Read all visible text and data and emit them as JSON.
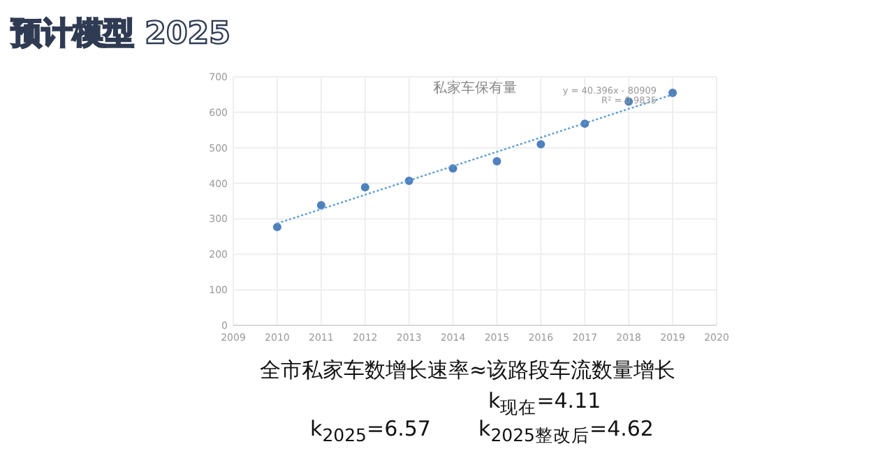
{
  "chart_data": {
    "type": "scatter",
    "title": "预计模型 2025",
    "subtitle": "私家车保有量",
    "x": [
      2010,
      2011,
      2012,
      2013,
      2014,
      2015,
      2016,
      2017,
      2018,
      2019
    ],
    "series": [
      {
        "type": "scatter",
        "color": "#4f81bd",
        "marker": "circle",
        "values": [
          277,
          338,
          389,
          407,
          442,
          462,
          510,
          568,
          630,
          655
        ]
      },
      {
        "type": "line",
        "x": [
          2010,
          2019
        ],
        "color": "#5b9bd5",
        "line_style": "dotted",
        "values": [
          287,
          650
        ]
      }
    ],
    "xlim": [
      2009,
      2020
    ],
    "xticks": [
      2009,
      2010,
      2011,
      2012,
      2013,
      2014,
      2015,
      2016,
      2017,
      2018,
      2019,
      2020
    ],
    "ylim": [
      0,
      700
    ],
    "yticks": [
      0,
      100,
      200,
      300,
      400,
      500,
      600,
      700
    ],
    "grid": true,
    "annotations": [
      "y = 40.396x - 80909",
      "R² = 0.9835",
      "全市私家车数增长速率≈该路段车流数量增长",
      "k$_{现在}$=4.11",
      "k$_{2025}$=6.57",
      "k$_{2025整改后}$=4.62"
    ]
  }
}
